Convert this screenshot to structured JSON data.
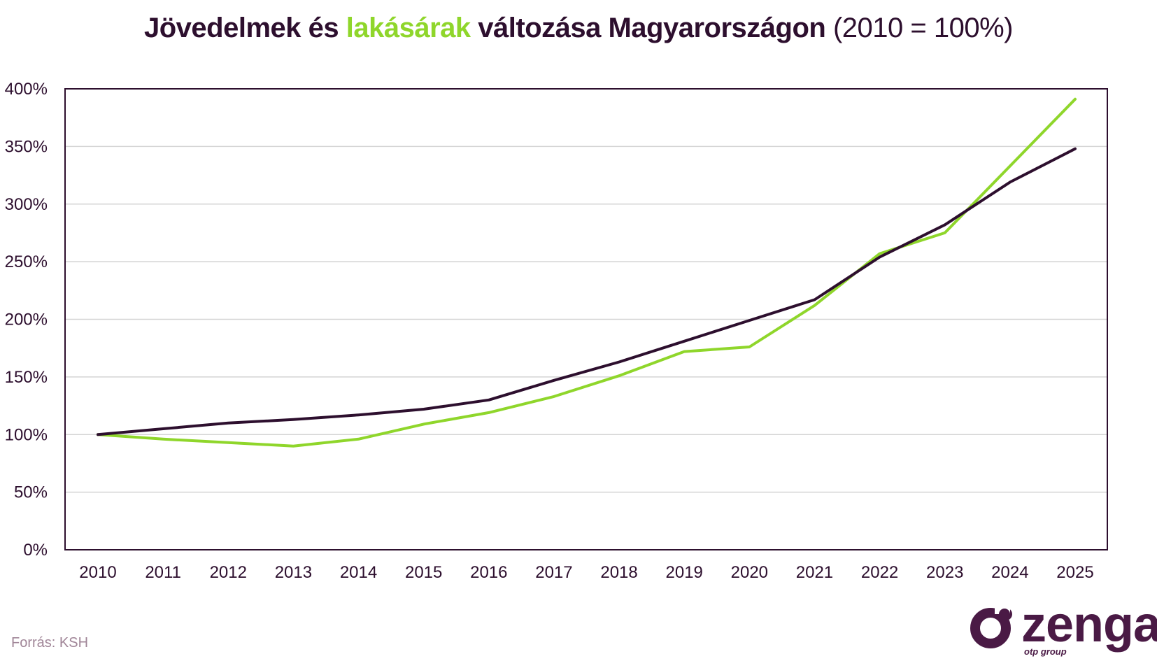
{
  "title": {
    "part1": "Jövedelmek és ",
    "highlight": "lakásárak",
    "part2": " változása Magyarországon",
    "suffix": " (2010 = 100%)"
  },
  "source": "Forrás: KSH",
  "logo": {
    "word": "zenga",
    "sub": "otp group"
  },
  "colors": {
    "text": "#2d0f2e",
    "income": "#2d0f2e",
    "housing": "#8fd62b",
    "grid": "#d4d4d4",
    "source": "#a08597",
    "logo": "#4a1a45"
  },
  "chart_data": {
    "type": "line",
    "categories": [
      "2010",
      "2011",
      "2012",
      "2013",
      "2014",
      "2015",
      "2016",
      "2017",
      "2018",
      "2019",
      "2020",
      "2021",
      "2022",
      "2023",
      "2024",
      "2025"
    ],
    "series": [
      {
        "key": "housing",
        "color": "#8fd62b",
        "values": [
          100,
          96,
          93,
          90,
          96,
          109,
          119,
          133,
          151,
          172,
          176,
          212,
          257,
          275,
          333,
          391
        ]
      },
      {
        "key": "income",
        "color": "#2d0f2e",
        "values": [
          100,
          105,
          110,
          113,
          117,
          122,
          130,
          147,
          163,
          181,
          199,
          217,
          254,
          282,
          319,
          348
        ]
      }
    ],
    "ylim": [
      0,
      400
    ],
    "yticks": [
      0,
      50,
      100,
      150,
      200,
      250,
      300,
      350,
      400
    ],
    "ytick_format": "%",
    "grid": true,
    "legend": "none"
  }
}
